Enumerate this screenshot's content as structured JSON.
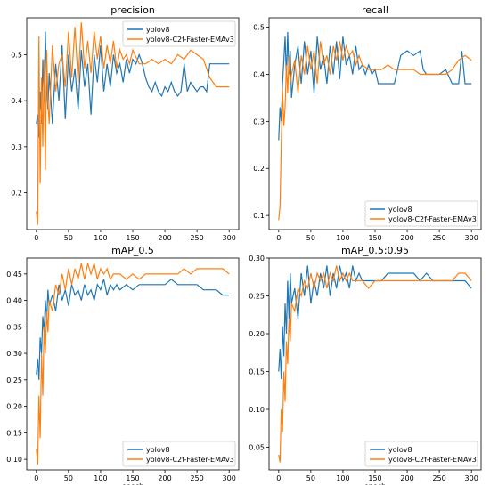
{
  "colors": {
    "yolov8": "#1f77b4",
    "emav3": "#ff7f0e"
  },
  "chart_data": [
    {
      "type": "line",
      "title": "precision",
      "xlabel": "",
      "ylabel": "",
      "xlim": [
        -15,
        315
      ],
      "ylim": [
        0.12,
        0.58
      ],
      "xticks": [
        0,
        50,
        100,
        150,
        200,
        250,
        300
      ],
      "yticks": [
        0.2,
        0.3,
        0.4,
        0.5
      ],
      "ytick_labels": [
        "0.2",
        "0.3",
        "0.4",
        "0.5"
      ],
      "grid": false,
      "legend": "top-right",
      "series": [
        {
          "name": "yolov8",
          "x": [
            0,
            2,
            4,
            6,
            8,
            10,
            12,
            14,
            16,
            18,
            20,
            25,
            30,
            35,
            40,
            45,
            50,
            55,
            60,
            65,
            70,
            75,
            80,
            85,
            90,
            95,
            100,
            105,
            110,
            115,
            120,
            125,
            130,
            135,
            140,
            145,
            150,
            155,
            160,
            165,
            170,
            175,
            180,
            185,
            190,
            195,
            200,
            205,
            210,
            215,
            220,
            225,
            230,
            235,
            240,
            245,
            250,
            255,
            260,
            265,
            270,
            275,
            280,
            285,
            290,
            295,
            300
          ],
          "values": [
            0.35,
            0.37,
            0.32,
            0.42,
            0.35,
            0.49,
            0.4,
            0.55,
            0.43,
            0.38,
            0.46,
            0.35,
            0.48,
            0.4,
            0.52,
            0.36,
            0.5,
            0.42,
            0.47,
            0.38,
            0.51,
            0.43,
            0.48,
            0.37,
            0.5,
            0.44,
            0.52,
            0.42,
            0.48,
            0.43,
            0.5,
            0.46,
            0.48,
            0.44,
            0.49,
            0.46,
            0.49,
            0.48,
            0.5,
            0.48,
            0.45,
            0.43,
            0.42,
            0.44,
            0.42,
            0.41,
            0.43,
            0.42,
            0.44,
            0.42,
            0.41,
            0.42,
            0.48,
            0.42,
            0.44,
            0.43,
            0.42,
            0.43,
            0.43,
            0.42,
            0.48,
            0.48,
            0.48,
            0.48,
            0.48,
            0.48,
            0.48
          ]
        },
        {
          "name": "yolov8-C2f-Faster-EMAv3",
          "x": [
            0,
            2,
            4,
            6,
            8,
            10,
            12,
            14,
            16,
            18,
            20,
            25,
            30,
            35,
            40,
            45,
            50,
            55,
            60,
            65,
            70,
            75,
            80,
            85,
            90,
            95,
            100,
            105,
            110,
            115,
            120,
            125,
            130,
            135,
            140,
            145,
            150,
            160,
            170,
            180,
            190,
            200,
            210,
            220,
            230,
            240,
            250,
            260,
            270,
            280,
            290,
            300
          ],
          "values": [
            0.16,
            0.13,
            0.54,
            0.22,
            0.45,
            0.3,
            0.49,
            0.25,
            0.51,
            0.4,
            0.35,
            0.52,
            0.42,
            0.48,
            0.5,
            0.43,
            0.55,
            0.45,
            0.56,
            0.44,
            0.57,
            0.47,
            0.53,
            0.46,
            0.55,
            0.49,
            0.54,
            0.47,
            0.52,
            0.48,
            0.53,
            0.47,
            0.51,
            0.49,
            0.5,
            0.48,
            0.51,
            0.48,
            0.48,
            0.49,
            0.48,
            0.49,
            0.48,
            0.5,
            0.49,
            0.51,
            0.5,
            0.49,
            0.45,
            0.43,
            0.43,
            0.43
          ]
        }
      ]
    },
    {
      "type": "line",
      "title": "recall",
      "xlabel": "",
      "ylabel": "",
      "xlim": [
        -15,
        315
      ],
      "ylim": [
        0.07,
        0.52
      ],
      "xticks": [
        0,
        50,
        100,
        150,
        200,
        250,
        300
      ],
      "yticks": [
        0.1,
        0.2,
        0.3,
        0.4,
        0.5
      ],
      "ytick_labels": [
        "0.1",
        "0.2",
        "0.3",
        "0.4",
        "0.5"
      ],
      "grid": false,
      "legend": "bottom-right",
      "series": [
        {
          "name": "yolov8",
          "x": [
            0,
            2,
            4,
            6,
            8,
            10,
            12,
            14,
            16,
            18,
            20,
            25,
            30,
            35,
            40,
            45,
            50,
            55,
            60,
            65,
            70,
            75,
            80,
            85,
            90,
            95,
            100,
            105,
            110,
            115,
            120,
            125,
            130,
            135,
            140,
            145,
            150,
            155,
            160,
            170,
            180,
            190,
            200,
            210,
            220,
            225,
            230,
            240,
            250,
            260,
            270,
            280,
            285,
            290,
            300
          ],
          "values": [
            0.26,
            0.33,
            0.3,
            0.38,
            0.43,
            0.48,
            0.39,
            0.49,
            0.4,
            0.45,
            0.35,
            0.42,
            0.46,
            0.38,
            0.47,
            0.4,
            0.45,
            0.36,
            0.48,
            0.41,
            0.44,
            0.38,
            0.46,
            0.4,
            0.47,
            0.39,
            0.48,
            0.42,
            0.44,
            0.4,
            0.46,
            0.41,
            0.42,
            0.4,
            0.42,
            0.4,
            0.41,
            0.38,
            0.38,
            0.38,
            0.38,
            0.44,
            0.45,
            0.44,
            0.45,
            0.41,
            0.4,
            0.4,
            0.4,
            0.41,
            0.38,
            0.38,
            0.45,
            0.38,
            0.38
          ]
        },
        {
          "name": "yolov8-C2f-Faster-EMAv3",
          "x": [
            0,
            2,
            4,
            6,
            8,
            10,
            12,
            14,
            16,
            18,
            20,
            25,
            30,
            35,
            40,
            45,
            50,
            55,
            60,
            65,
            70,
            75,
            80,
            85,
            90,
            95,
            100,
            105,
            110,
            115,
            120,
            125,
            130,
            140,
            150,
            160,
            170,
            180,
            190,
            200,
            210,
            220,
            230,
            240,
            250,
            260,
            270,
            280,
            290,
            300
          ],
          "values": [
            0.09,
            0.12,
            0.25,
            0.37,
            0.29,
            0.33,
            0.42,
            0.36,
            0.44,
            0.38,
            0.4,
            0.43,
            0.36,
            0.44,
            0.4,
            0.46,
            0.41,
            0.45,
            0.38,
            0.47,
            0.42,
            0.44,
            0.4,
            0.46,
            0.43,
            0.47,
            0.43,
            0.46,
            0.44,
            0.45,
            0.42,
            0.44,
            0.42,
            0.41,
            0.41,
            0.41,
            0.42,
            0.41,
            0.41,
            0.41,
            0.41,
            0.4,
            0.4,
            0.4,
            0.4,
            0.4,
            0.41,
            0.43,
            0.44,
            0.43
          ]
        }
      ]
    },
    {
      "type": "line",
      "title": "mAP_0.5",
      "xlabel": "epoch",
      "ylabel": "",
      "xlim": [
        -15,
        315
      ],
      "ylim": [
        0.08,
        0.48
      ],
      "xticks": [
        0,
        50,
        100,
        150,
        200,
        250,
        300
      ],
      "yticks": [
        0.1,
        0.15,
        0.2,
        0.25,
        0.3,
        0.35,
        0.4,
        0.45
      ],
      "ytick_labels": [
        "0.10",
        "0.15",
        "0.20",
        "0.25",
        "0.30",
        "0.35",
        "0.40",
        "0.45"
      ],
      "grid": false,
      "legend": "bottom-right",
      "series": [
        {
          "name": "yolov8",
          "x": [
            0,
            2,
            4,
            6,
            8,
            10,
            12,
            14,
            16,
            18,
            20,
            25,
            30,
            35,
            40,
            45,
            50,
            55,
            60,
            65,
            70,
            75,
            80,
            85,
            90,
            95,
            100,
            105,
            110,
            115,
            120,
            125,
            130,
            140,
            150,
            160,
            170,
            180,
            190,
            200,
            210,
            220,
            230,
            240,
            250,
            260,
            270,
            280,
            290,
            300
          ],
          "values": [
            0.26,
            0.29,
            0.25,
            0.33,
            0.3,
            0.37,
            0.34,
            0.4,
            0.36,
            0.42,
            0.39,
            0.41,
            0.38,
            0.43,
            0.4,
            0.42,
            0.39,
            0.43,
            0.41,
            0.42,
            0.4,
            0.43,
            0.41,
            0.42,
            0.4,
            0.43,
            0.42,
            0.44,
            0.41,
            0.43,
            0.42,
            0.43,
            0.42,
            0.43,
            0.42,
            0.43,
            0.43,
            0.43,
            0.43,
            0.43,
            0.44,
            0.43,
            0.43,
            0.43,
            0.43,
            0.42,
            0.42,
            0.42,
            0.41,
            0.41
          ]
        },
        {
          "name": "yolov8-C2f-Faster-EMAv3",
          "x": [
            0,
            2,
            4,
            6,
            8,
            10,
            12,
            14,
            16,
            18,
            20,
            25,
            30,
            35,
            40,
            45,
            50,
            55,
            60,
            65,
            70,
            75,
            80,
            85,
            90,
            95,
            100,
            105,
            110,
            115,
            120,
            130,
            140,
            150,
            160,
            170,
            180,
            190,
            200,
            210,
            220,
            230,
            240,
            250,
            260,
            270,
            280,
            290,
            300
          ],
          "values": [
            0.12,
            0.09,
            0.22,
            0.14,
            0.3,
            0.22,
            0.35,
            0.3,
            0.38,
            0.34,
            0.4,
            0.38,
            0.43,
            0.41,
            0.45,
            0.42,
            0.46,
            0.43,
            0.46,
            0.44,
            0.47,
            0.44,
            0.47,
            0.45,
            0.47,
            0.44,
            0.46,
            0.45,
            0.46,
            0.44,
            0.45,
            0.45,
            0.44,
            0.45,
            0.44,
            0.45,
            0.45,
            0.45,
            0.45,
            0.45,
            0.45,
            0.46,
            0.45,
            0.46,
            0.46,
            0.46,
            0.46,
            0.46,
            0.45
          ]
        }
      ]
    },
    {
      "type": "line",
      "title": "mAP_0.5:0.95",
      "xlabel": "epoch",
      "ylabel": "",
      "xlim": [
        -15,
        315
      ],
      "ylim": [
        0.02,
        0.3
      ],
      "xticks": [
        0,
        50,
        100,
        150,
        200,
        250,
        300
      ],
      "yticks": [
        0.05,
        0.1,
        0.15,
        0.2,
        0.25,
        0.3
      ],
      "ytick_labels": [
        "0.05",
        "0.10",
        "0.15",
        "0.20",
        "0.25",
        "0.30"
      ],
      "grid": false,
      "legend": "bottom-right",
      "series": [
        {
          "name": "yolov8",
          "x": [
            0,
            2,
            4,
            6,
            8,
            10,
            12,
            14,
            16,
            18,
            20,
            25,
            30,
            35,
            40,
            45,
            50,
            55,
            60,
            65,
            70,
            75,
            80,
            85,
            90,
            95,
            100,
            105,
            110,
            115,
            120,
            125,
            130,
            140,
            150,
            160,
            170,
            180,
            190,
            200,
            210,
            220,
            230,
            240,
            250,
            260,
            270,
            280,
            290,
            300
          ],
          "values": [
            0.15,
            0.18,
            0.14,
            0.21,
            0.17,
            0.24,
            0.2,
            0.27,
            0.22,
            0.28,
            0.24,
            0.26,
            0.22,
            0.28,
            0.25,
            0.29,
            0.24,
            0.27,
            0.25,
            0.28,
            0.26,
            0.29,
            0.25,
            0.28,
            0.26,
            0.29,
            0.27,
            0.28,
            0.26,
            0.29,
            0.27,
            0.28,
            0.27,
            0.27,
            0.27,
            0.27,
            0.28,
            0.28,
            0.28,
            0.28,
            0.28,
            0.27,
            0.28,
            0.27,
            0.27,
            0.27,
            0.27,
            0.27,
            0.27,
            0.26
          ]
        },
        {
          "name": "yolov8-C2f-Faster-EMAv3",
          "x": [
            0,
            2,
            4,
            6,
            8,
            10,
            12,
            14,
            16,
            18,
            20,
            25,
            30,
            35,
            40,
            45,
            50,
            55,
            60,
            65,
            70,
            75,
            80,
            85,
            90,
            95,
            100,
            105,
            110,
            115,
            120,
            130,
            140,
            150,
            160,
            170,
            180,
            190,
            200,
            210,
            220,
            230,
            240,
            250,
            260,
            270,
            280,
            290,
            300
          ],
          "values": [
            0.04,
            0.03,
            0.1,
            0.07,
            0.15,
            0.11,
            0.19,
            0.16,
            0.22,
            0.19,
            0.24,
            0.23,
            0.26,
            0.25,
            0.27,
            0.26,
            0.28,
            0.26,
            0.28,
            0.27,
            0.28,
            0.26,
            0.28,
            0.27,
            0.29,
            0.27,
            0.28,
            0.27,
            0.28,
            0.27,
            0.27,
            0.27,
            0.26,
            0.27,
            0.27,
            0.27,
            0.27,
            0.27,
            0.27,
            0.27,
            0.27,
            0.27,
            0.27,
            0.27,
            0.27,
            0.27,
            0.28,
            0.28,
            0.27
          ]
        }
      ]
    }
  ]
}
